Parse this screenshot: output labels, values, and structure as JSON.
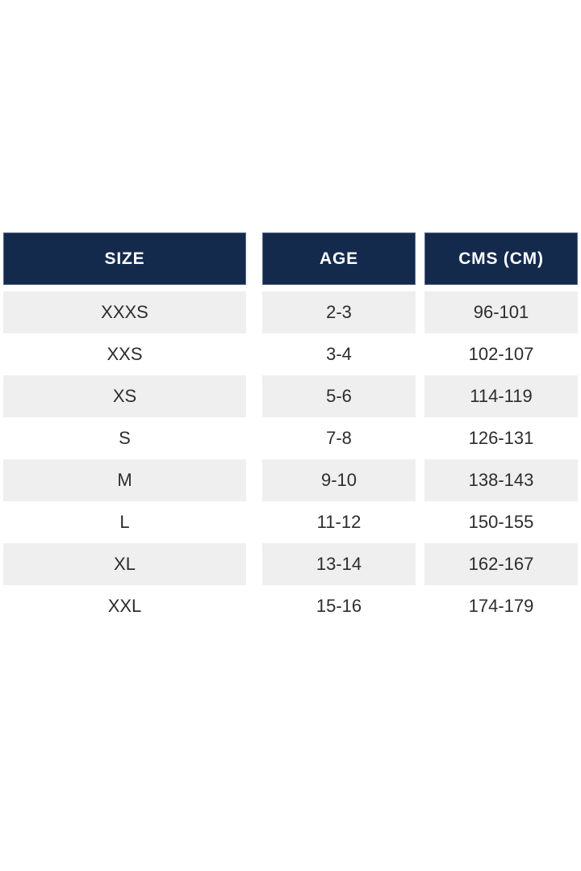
{
  "chart_data": {
    "type": "table",
    "columns": [
      "SIZE",
      "AGE",
      "CMS (CM)"
    ],
    "rows": [
      [
        "XXXS",
        "2-3",
        "96-101"
      ],
      [
        "XXS",
        "3-4",
        "102-107"
      ],
      [
        "XS",
        "5-6",
        "114-119"
      ],
      [
        "S",
        "7-8",
        "126-131"
      ],
      [
        "M",
        "9-10",
        "138-143"
      ],
      [
        "L",
        "11-12",
        "150-155"
      ],
      [
        "XL",
        "13-14",
        "162-167"
      ],
      [
        "XXL",
        "15-16",
        "174-179"
      ]
    ],
    "layout": {
      "header_position": "top",
      "zebra_striping": true,
      "striped_row_indexes": [
        0,
        2,
        4,
        6
      ],
      "column_alignment": "center"
    }
  },
  "colors": {
    "header_bg": "#142a4d",
    "header_text": "#ffffff",
    "row_stripe_bg": "#efefef",
    "row_bg": "#ffffff",
    "cell_text": "#2d2d2d",
    "page_bg": "#ffffff"
  }
}
